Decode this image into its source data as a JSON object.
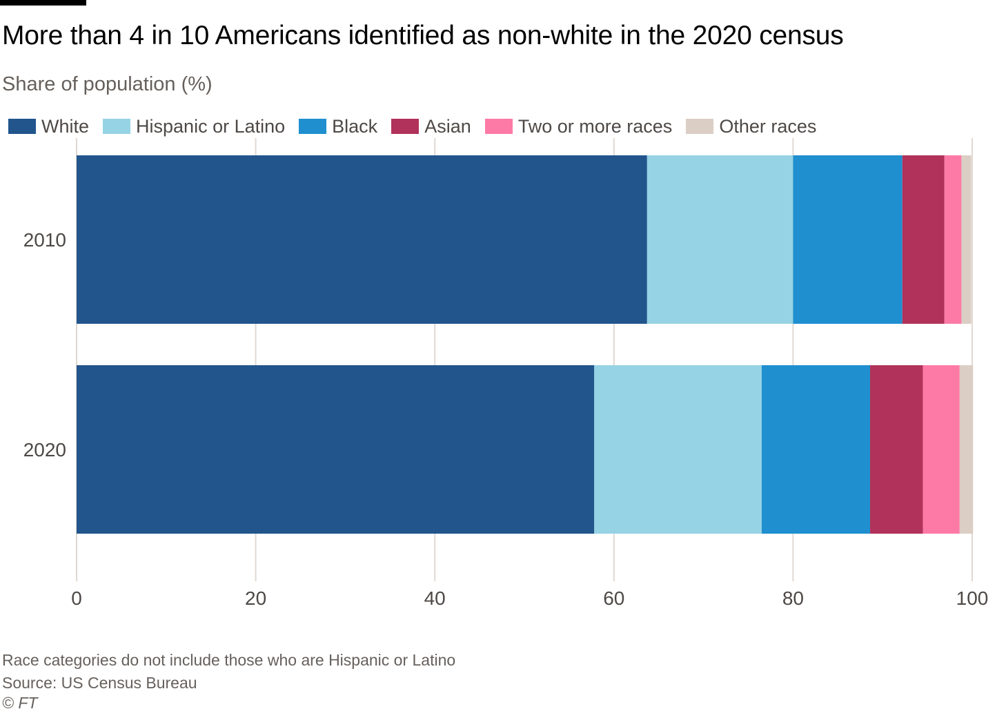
{
  "header": {
    "title": "More than 4 in 10 Americans identified as non-white in the 2020 census",
    "subtitle": "Share of population (%)"
  },
  "legend": [
    {
      "label": "White",
      "color": "#21558c"
    },
    {
      "label": "Hispanic or Latino",
      "color": "#96d3e5"
    },
    {
      "label": "Black",
      "color": "#1f8fcf"
    },
    {
      "label": "Asian",
      "color": "#b1325a"
    },
    {
      "label": "Two or more races",
      "color": "#fe7aa6"
    },
    {
      "label": "Other races",
      "color": "#dbcec5"
    }
  ],
  "footer": {
    "note": "Race categories do not include those who are Hispanic or Latino",
    "source": "Source: US Census Bureau",
    "copyright": "© FT"
  },
  "chart_data": {
    "type": "bar",
    "orientation": "horizontal",
    "stacked": true,
    "categories": [
      "2010",
      "2020"
    ],
    "series": [
      {
        "name": "White",
        "values": [
          63.7,
          57.8
        ]
      },
      {
        "name": "Hispanic or Latino",
        "values": [
          16.3,
          18.7
        ]
      },
      {
        "name": "Black",
        "values": [
          12.2,
          12.1
        ]
      },
      {
        "name": "Asian",
        "values": [
          4.7,
          5.9
        ]
      },
      {
        "name": "Two or more races",
        "values": [
          1.9,
          4.1
        ]
      },
      {
        "name": "Other races",
        "values": [
          1.1,
          1.5
        ]
      }
    ],
    "xlim": [
      0,
      100
    ],
    "xticks": [
      0,
      20,
      40,
      60,
      80,
      100
    ],
    "grid": "vertical",
    "legend_position": "top"
  }
}
